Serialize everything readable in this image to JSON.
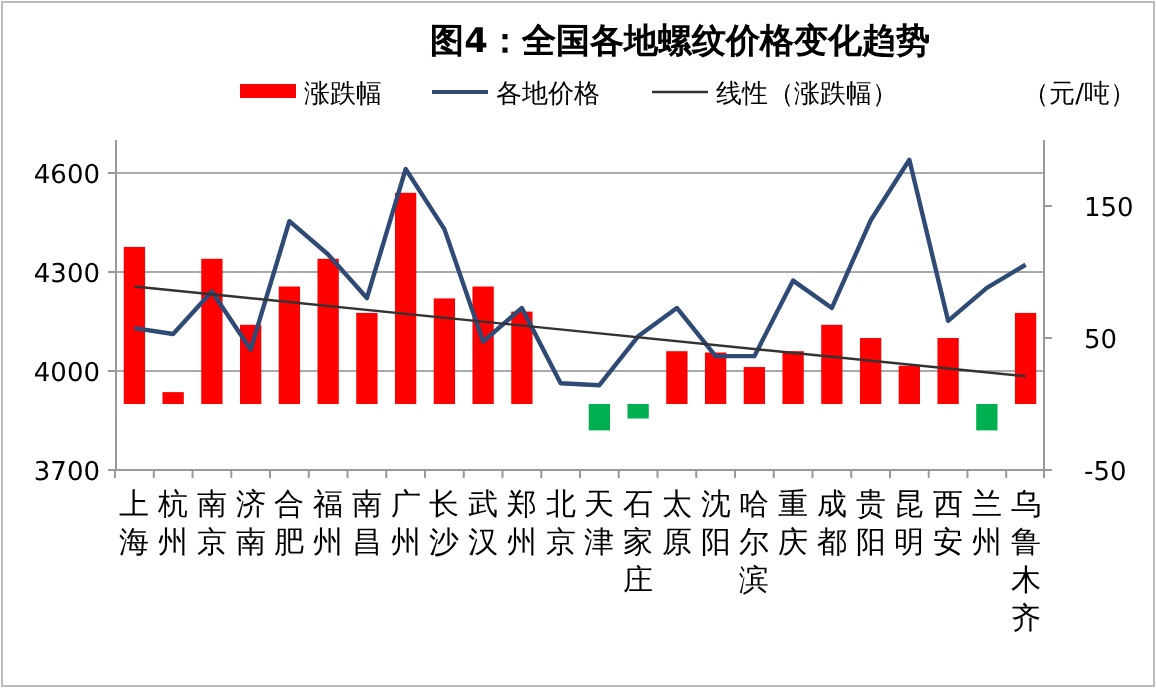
{
  "chart_data": {
    "type": "bar",
    "title": "图4：全国各地螺纹价格变化趋势",
    "annotations": [
      "（元/吨）"
    ],
    "categories": [
      "上海",
      "杭州",
      "南京",
      "济南",
      "合肥",
      "福州",
      "南昌",
      "广州",
      "长沙",
      "武汉",
      "郑州",
      "北京",
      "天津",
      "石家庄",
      "太原",
      "沈阳",
      "哈尔滨",
      "重庆",
      "成都",
      "贵阳",
      "昆明",
      "西安",
      "兰州",
      "乌鲁木齐"
    ],
    "series": [
      {
        "name": "涨跌幅",
        "axis": "y2",
        "color": "#ff0000",
        "colors": [
          "#ff0000",
          "#ff0000",
          "#ff0000",
          "#ff0000",
          "#ff0000",
          "#ff0000",
          "#ff0000",
          "#ff0000",
          "#ff0000",
          "#ff0000",
          "#ff0000",
          "#ff0000",
          "#00b050",
          "#00b050",
          "#ff0000",
          "#ff0000",
          "#ff0000",
          "#ff0000",
          "#ff0000",
          "#ff0000",
          "#ff0000",
          "#ff0000",
          "#00b050",
          "#ff0000"
        ],
        "values": [
          119,
          9,
          110,
          60,
          89,
          110,
          69,
          160,
          80,
          89,
          70,
          0,
          -20,
          -11,
          40,
          39,
          28,
          40,
          60,
          50,
          29,
          50,
          -20,
          69
        ]
      },
      {
        "name": "各地价格",
        "type": "line",
        "color": "#2e4a75",
        "values": [
          4130,
          4112,
          4241,
          4065,
          4454,
          4353,
          4221,
          4612,
          4430,
          4089,
          4191,
          3963,
          3957,
          4105,
          4191,
          4045,
          4045,
          4274,
          4191,
          4456,
          4640,
          4152,
          4252,
          4322
        ]
      },
      {
        "name": "线性（涨跌幅）",
        "type": "line",
        "axis": "y2",
        "color": "#333333",
        "x": [
          "上海",
          "乌鲁木齐"
        ],
        "values": [
          89,
          21
        ]
      }
    ],
    "ylim": [
      3700,
      4700
    ],
    "yticks": [
      3700,
      4000,
      4300,
      4600
    ],
    "y2lim": [
      -50,
      200
    ],
    "y2ticks": [
      -50,
      50,
      150
    ],
    "grid": "y",
    "legend": "top",
    "marker": "none",
    "line_style": "solid"
  }
}
